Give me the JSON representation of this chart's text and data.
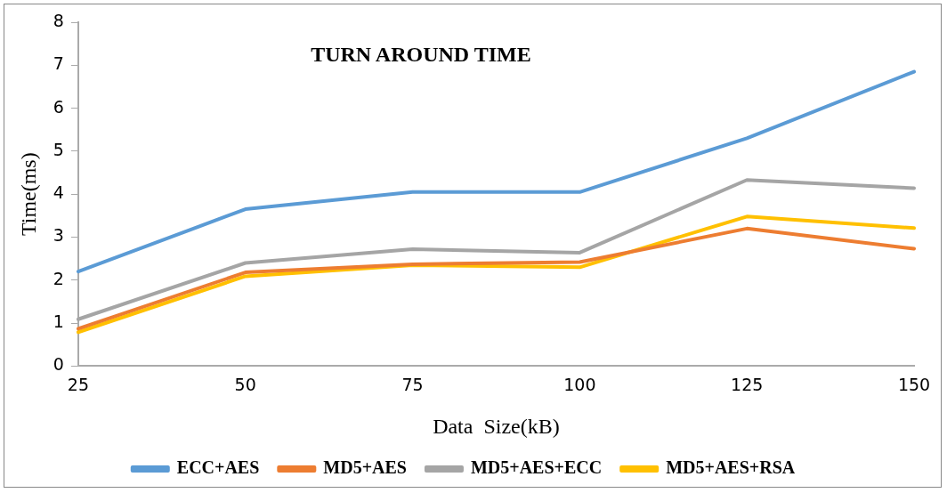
{
  "chart_data": {
    "type": "line",
    "title": "TURN AROUND TIME",
    "xlabel": "Data  Size(kB)",
    "ylabel": "Time(ms)",
    "categories": [
      "25",
      "50",
      "75",
      "100",
      "125",
      "150"
    ],
    "series": [
      {
        "name": "ECC+AES",
        "color": "#5b9bd5",
        "values": [
          2.2,
          3.65,
          4.05,
          4.05,
          5.3,
          6.85
        ]
      },
      {
        "name": "MD5+AES",
        "color": "#ed7d31",
        "values": [
          0.87,
          2.18,
          2.37,
          2.42,
          3.2,
          2.73
        ]
      },
      {
        "name": "MD5+AES+ECC",
        "color": "#a5a5a5",
        "values": [
          1.09,
          2.4,
          2.72,
          2.64,
          4.33,
          4.14
        ]
      },
      {
        "name": "MD5+AES+RSA",
        "color": "#ffc000",
        "values": [
          0.79,
          2.09,
          2.35,
          2.3,
          3.48,
          3.21
        ]
      }
    ],
    "ylim": [
      0,
      8
    ],
    "yticks": [
      0,
      1,
      2,
      3,
      4,
      5,
      6,
      7,
      8
    ],
    "grid": false,
    "legend": "bottom",
    "marker": "none"
  }
}
